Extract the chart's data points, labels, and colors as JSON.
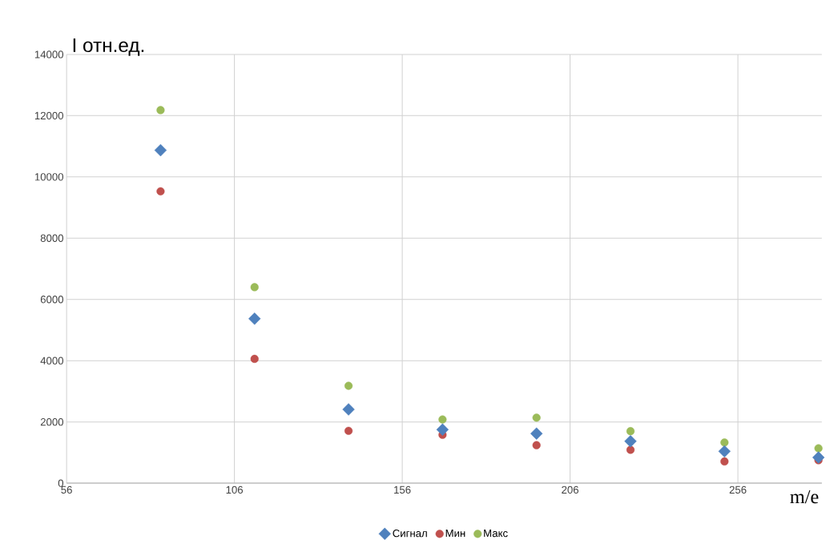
{
  "chart_data": {
    "type": "scatter",
    "ylabel": "I отн.ед.",
    "xlabel": "m/e",
    "x": [
      84,
      112,
      140,
      168,
      196,
      224,
      252,
      280
    ],
    "series": [
      {
        "name": "Сигнал",
        "color": "#4f81bd",
        "marker": "diamond",
        "values": [
          10870,
          5370,
          2410,
          1750,
          1620,
          1370,
          1040,
          840
        ]
      },
      {
        "name": "Мин",
        "color": "#c0504d",
        "marker": "circle",
        "values": [
          9530,
          4060,
          1710,
          1580,
          1240,
          1090,
          710,
          750
        ]
      },
      {
        "name": "Макс",
        "color": "#9bbb59",
        "marker": "circle",
        "values": [
          12180,
          6400,
          3180,
          2080,
          2140,
          1700,
          1330,
          1140
        ]
      }
    ],
    "xlim": [
      56,
      281
    ],
    "ylim": [
      0,
      14000
    ],
    "xticks": [
      56,
      106,
      156,
      206,
      256
    ],
    "yticks": [
      0,
      2000,
      4000,
      6000,
      8000,
      10000,
      12000,
      14000
    ],
    "grid": true,
    "legend": "bottom"
  }
}
